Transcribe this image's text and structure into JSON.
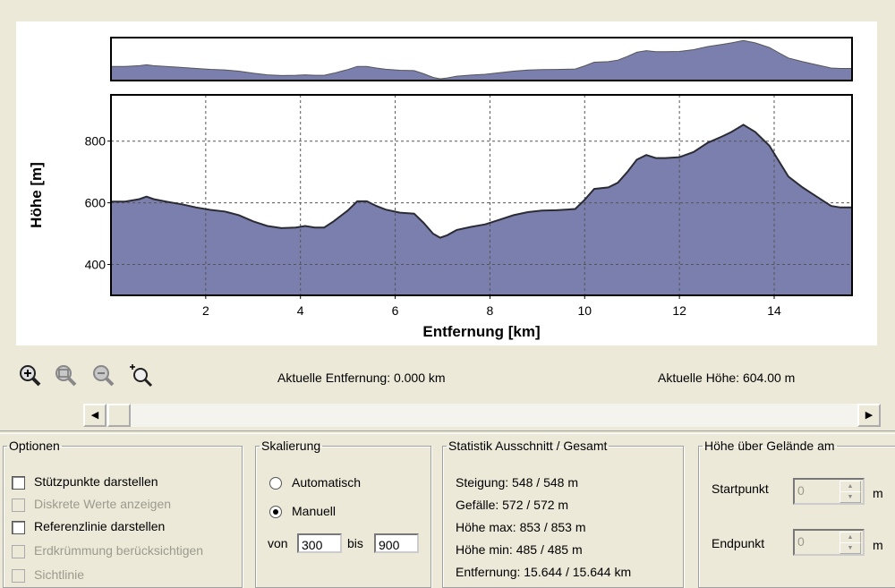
{
  "chart_data": {
    "type": "area",
    "ylabel": "Höhe [m]",
    "xlabel": "Entfernung [km]",
    "xlim": [
      0,
      15.644
    ],
    "ylim": [
      300,
      950
    ],
    "x_ticks": [
      2,
      4,
      6,
      8,
      10,
      12,
      14
    ],
    "y_ticks": [
      400,
      600,
      800
    ],
    "grid": true,
    "fill_color": "#7b7fae",
    "line_color": "#2b2b33",
    "series": [
      {
        "x": [
          0,
          0.3,
          0.6,
          0.75,
          0.9,
          1.2,
          1.5,
          1.8,
          2.1,
          2.4,
          2.7,
          3.0,
          3.3,
          3.6,
          3.9,
          4.1,
          4.3,
          4.5,
          4.7,
          5.0,
          5.2,
          5.4,
          5.6,
          5.8,
          6.1,
          6.4,
          6.6,
          6.8,
          6.95,
          7.1,
          7.3,
          7.6,
          7.9,
          8.2,
          8.5,
          8.8,
          9.1,
          9.4,
          9.6,
          9.8,
          10.0,
          10.2,
          10.5,
          10.7,
          10.9,
          11.1,
          11.3,
          11.5,
          11.7,
          12.0,
          12.3,
          12.6,
          12.9,
          13.1,
          13.35,
          13.6,
          13.9,
          14.1,
          14.3,
          14.6,
          14.8,
          15.0,
          15.2,
          15.4,
          15.644
        ],
        "y": [
          604,
          604,
          612,
          620,
          612,
          603,
          595,
          585,
          577,
          572,
          560,
          540,
          525,
          518,
          520,
          525,
          520,
          520,
          540,
          575,
          605,
          605,
          590,
          578,
          568,
          565,
          535,
          500,
          487,
          495,
          512,
          522,
          530,
          545,
          560,
          570,
          575,
          576,
          578,
          580,
          610,
          645,
          650,
          665,
          700,
          740,
          755,
          745,
          745,
          748,
          765,
          795,
          815,
          830,
          853,
          830,
          785,
          735,
          685,
          650,
          630,
          610,
          590,
          585,
          585
        ]
      }
    ]
  },
  "toolbar": {
    "icons": [
      "zoom-in-icon",
      "zoom-region-icon",
      "zoom-out-icon",
      "zoom-reset-icon"
    ]
  },
  "status": {
    "distance": "Aktuelle Entfernung: 0.000 km",
    "height": "Aktuelle Höhe: 604.00 m"
  },
  "optionen": {
    "legend": "Optionen",
    "items": [
      {
        "label": "Stützpunkte darstellen",
        "enabled": true
      },
      {
        "label": "Diskrete Werte anzeigen",
        "enabled": false
      },
      {
        "label": "Referenzlinie darstellen",
        "enabled": true
      },
      {
        "label": "Erdkrümmung berücksichtigen",
        "enabled": false
      },
      {
        "label": "Sichtlinie",
        "enabled": false
      }
    ]
  },
  "skalierung": {
    "legend": "Skalierung",
    "auto_label": "Automatisch",
    "manual_label": "Manuell",
    "selected": "Manuell",
    "von_label": "von",
    "von_value": "300",
    "bis_label": "bis",
    "bis_value": "900"
  },
  "statistik": {
    "legend": "Statistik   Ausschnitt / Gesamt",
    "lines": [
      "Steigung: 548 / 548 m",
      "Gefälle: 572 / 572 m",
      "Höhe max: 853 / 853 m",
      "Höhe min: 485 / 485 m",
      "Entfernung: 15.644 / 15.644 km"
    ]
  },
  "hoehe_gelaende": {
    "legend": "Höhe über Gelände am",
    "start_label": "Startpunkt",
    "start_value": "0",
    "end_label": "Endpunkt",
    "end_value": "0",
    "unit": "m"
  }
}
